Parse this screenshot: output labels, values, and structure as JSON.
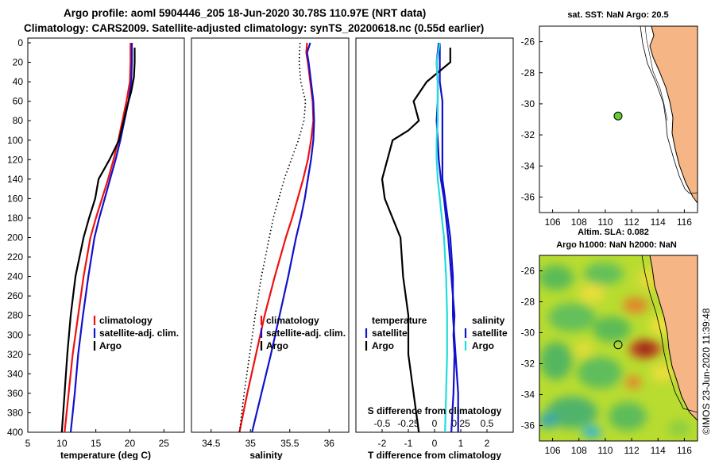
{
  "title": {
    "line1": "Argo profile: aoml 5904446_205 18-Jun-2020 30.78S 110.97E (NRT data)",
    "line2": "Climatology: CARS2009. Satellite-adjusted climatology: synTS_20200618.nc (0.55d earlier)"
  },
  "colors": {
    "climatology": "#ee1111",
    "satellite": "#1111cc",
    "argo": "#000000",
    "sat_salinity": "#22dddd",
    "land": "#f6b585",
    "argo_marker": "#66cc33"
  },
  "depth_ticks": [
    0,
    20,
    40,
    60,
    80,
    100,
    120,
    140,
    160,
    180,
    200,
    220,
    240,
    260,
    280,
    300,
    320,
    340,
    360,
    380,
    400
  ],
  "chart_data": [
    {
      "type": "line",
      "id": "temperature",
      "xlabel": "temperature (deg C)",
      "ylabel": "depth (m)",
      "xlim": [
        5,
        28
      ],
      "ylim": [
        400,
        0
      ],
      "x_ticks": [
        5,
        10,
        15,
        20,
        25
      ],
      "legend": {
        "position": "lower-right",
        "entries": [
          "climatology",
          "satellite-adj. clim.",
          "Argo"
        ]
      },
      "series": [
        {
          "name": "climatology",
          "color": "#ee1111",
          "width": 2.2,
          "depth": [
            0,
            20,
            40,
            60,
            80,
            100,
            120,
            140,
            160,
            180,
            200,
            240,
            280,
            320,
            360,
            400
          ],
          "x": [
            20.1,
            20.1,
            20.0,
            19.5,
            18.9,
            18.3,
            17.6,
            16.8,
            15.9,
            15.0,
            14.2,
            13.2,
            12.4,
            11.6,
            11.0,
            10.4
          ]
        },
        {
          "name": "satellite-adj. clim.",
          "color": "#1111cc",
          "width": 2.2,
          "depth": [
            0,
            20,
            40,
            60,
            80,
            100,
            120,
            140,
            160,
            180,
            200,
            240,
            280,
            320,
            360,
            400
          ],
          "x": [
            20.3,
            20.3,
            20.2,
            19.8,
            19.2,
            18.6,
            17.9,
            17.1,
            16.3,
            15.5,
            14.8,
            13.9,
            13.1,
            12.4,
            11.9,
            11.3
          ]
        },
        {
          "name": "Argo",
          "color": "#000000",
          "width": 2.2,
          "depth": [
            5,
            20,
            35,
            50,
            65,
            80,
            100,
            120,
            140,
            160,
            180,
            200,
            240,
            280,
            320,
            360,
            400
          ],
          "x": [
            20.7,
            20.7,
            20.6,
            20.2,
            19.6,
            19.1,
            18.4,
            17.0,
            15.4,
            14.9,
            14.0,
            13.2,
            12.0,
            11.3,
            10.8,
            10.4,
            10.0
          ]
        }
      ]
    },
    {
      "type": "line",
      "id": "salinity",
      "xlabel": "salinity",
      "ylabel": "",
      "xlim": [
        34.25,
        36.25
      ],
      "ylim": [
        400,
        0
      ],
      "x_ticks": [
        34.5,
        35,
        35.5,
        36
      ],
      "x_tick_labels": [
        "34.5",
        "35",
        "35.5",
        "36"
      ],
      "legend": {
        "position": "lower-right",
        "entries": [
          "climatology",
          "satellite-adj. clim.",
          "Argo"
        ]
      },
      "series": [
        {
          "name": "climatology",
          "color": "#ee1111",
          "width": 2.2,
          "depth": [
            0,
            10,
            20,
            40,
            60,
            80,
            100,
            120,
            140,
            160,
            180,
            200,
            240,
            280,
            320,
            360,
            400
          ],
          "x": [
            35.72,
            35.71,
            35.73,
            35.76,
            35.79,
            35.8,
            35.77,
            35.73,
            35.67,
            35.6,
            35.53,
            35.45,
            35.31,
            35.18,
            35.07,
            34.96,
            34.86
          ]
        },
        {
          "name": "satellite-adj. clim.",
          "color": "#1111cc",
          "width": 2.2,
          "depth": [
            0,
            10,
            20,
            40,
            60,
            80,
            100,
            120,
            140,
            160,
            180,
            200,
            240,
            280,
            320,
            360,
            400
          ],
          "x": [
            35.76,
            35.72,
            35.74,
            35.77,
            35.8,
            35.81,
            35.8,
            35.77,
            35.73,
            35.69,
            35.64,
            35.58,
            35.48,
            35.37,
            35.26,
            35.14,
            35.02
          ]
        },
        {
          "name": "Argo",
          "color": "#000000",
          "width": 1.6,
          "dash": "1.5,3",
          "depth": [
            0,
            20,
            40,
            60,
            80,
            100,
            120,
            140,
            160,
            180,
            200,
            240,
            280,
            320,
            360,
            400
          ],
          "x": [
            35.63,
            35.62,
            35.64,
            35.7,
            35.68,
            35.61,
            35.52,
            35.43,
            35.36,
            35.29,
            35.24,
            35.14,
            35.06,
            34.99,
            34.92,
            34.86
          ]
        }
      ]
    },
    {
      "type": "line",
      "id": "difference",
      "xlabel": "T difference from climatology",
      "xlabel_top": "S difference from climatology",
      "ylabel": "",
      "xlim": [
        -3,
        3
      ],
      "ylim": [
        400,
        0
      ],
      "x_ticks": [
        -2,
        -1,
        0,
        1,
        2
      ],
      "x2lim": [
        -0.75,
        0.75
      ],
      "x2_ticks": [
        -0.5,
        -0.25,
        0,
        0.25,
        0.5
      ],
      "x2_tick_labels": [
        "-0.5",
        "-0.25",
        "0",
        "0.25",
        "0.5"
      ],
      "legend": {
        "position": "lower-center",
        "temperature_header": "temperature",
        "salinity_header": "salinity",
        "satellite": "satellite",
        "argo": "Argo"
      },
      "series": [
        {
          "name": "T satellite",
          "axis": "T",
          "color": "#1111cc",
          "width": 2.2,
          "depth": [
            0,
            20,
            40,
            60,
            80,
            100,
            120,
            140,
            160,
            180,
            200,
            240,
            280,
            320,
            360,
            400
          ],
          "x": [
            0.2,
            0.2,
            0.2,
            0.3,
            0.3,
            0.3,
            0.3,
            0.3,
            0.4,
            0.5,
            0.6,
            0.7,
            0.7,
            0.8,
            0.9,
            0.9
          ]
        },
        {
          "name": "T Argo",
          "axis": "T",
          "color": "#000000",
          "width": 2.2,
          "depth": [
            5,
            20,
            40,
            60,
            80,
            90,
            100,
            120,
            140,
            160,
            180,
            200,
            240,
            280,
            320,
            360,
            400
          ],
          "x": [
            0.6,
            0.6,
            -0.3,
            -0.8,
            -0.6,
            -1.0,
            -1.6,
            -1.8,
            -2.0,
            -1.9,
            -1.6,
            -1.3,
            -1.2,
            -1.0,
            -1.0,
            -0.8,
            -0.6
          ]
        },
        {
          "name": "S satellite",
          "axis": "S",
          "color": "#1111cc",
          "width": 2.2,
          "depth": [
            0,
            20,
            40,
            60,
            80,
            100,
            120,
            140,
            160,
            180,
            200,
            240,
            280,
            300,
            320,
            360,
            400
          ],
          "x": [
            0.04,
            0.02,
            0.03,
            0.03,
            0.02,
            0.03,
            0.04,
            0.06,
            0.09,
            0.11,
            0.13,
            0.16,
            0.19,
            0.18,
            0.19,
            0.18,
            0.16
          ]
        },
        {
          "name": "S Argo",
          "axis": "S",
          "color": "#22dddd",
          "width": 2.2,
          "depth": [
            0,
            20,
            40,
            60,
            80,
            100,
            120,
            140,
            160,
            180,
            200,
            240,
            280,
            320,
            360,
            400
          ],
          "x": [
            0.05,
            0.02,
            0.03,
            0.03,
            0.03,
            0.02,
            0.02,
            0.03,
            0.05,
            0.07,
            0.09,
            0.11,
            0.12,
            0.12,
            0.11,
            0.1
          ]
        }
      ]
    }
  ],
  "map_top": {
    "title": "sat. SST: NaN Argo: 20.5",
    "lon_ticks": [
      106,
      108,
      110,
      112,
      114,
      116
    ],
    "lat_ticks": [
      -26,
      -28,
      -30,
      -32,
      -34,
      -36
    ],
    "lon_range": [
      105,
      117
    ],
    "lat_range": [
      -25,
      -37
    ],
    "argo_lon": 110.97,
    "argo_lat": -30.78
  },
  "map_bottom": {
    "title1": "Altim. SLA: 0.082",
    "title2": "Argo h1000: NaN h2000: NaN",
    "lon_ticks": [
      106,
      108,
      110,
      112,
      114,
      116
    ],
    "lat_ticks": [
      -26,
      -28,
      -30,
      -32,
      -34,
      -36
    ],
    "argo_lon": 110.97,
    "argo_lat": -30.78,
    "watermark": "©IMOS 23-Jun-2020 11:39:48"
  }
}
